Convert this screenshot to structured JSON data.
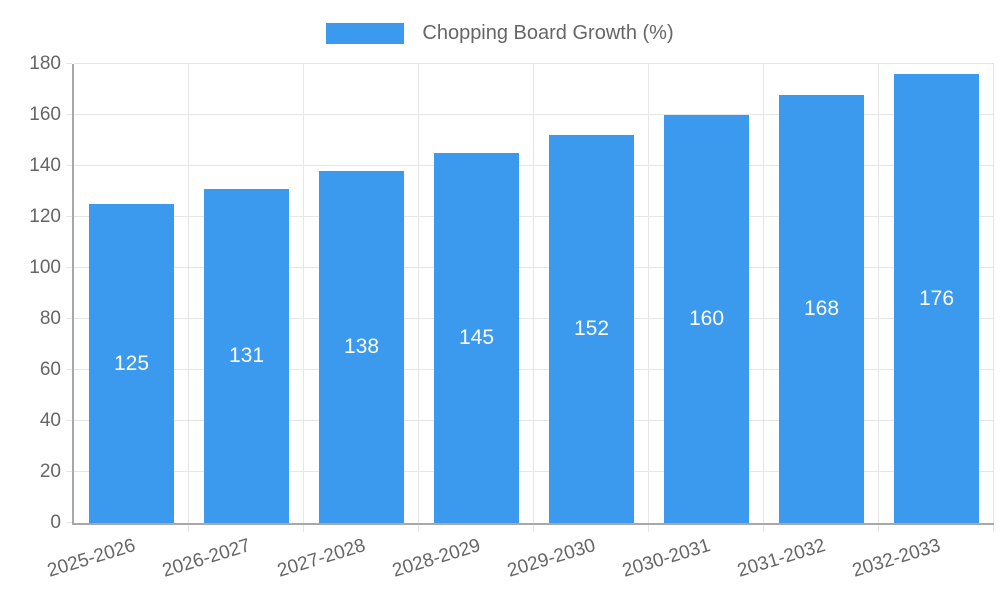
{
  "legend": {
    "label": "Chopping Board Growth (%)"
  },
  "colors": {
    "bar": "#3B99EE",
    "axis_line": "#a8a8a8",
    "grid_line": "#e6e6e6",
    "tick_text": "#666666",
    "legend_text": "#666666",
    "value_label_text": "#ffffff",
    "background": "#ffffff"
  },
  "chart_data": {
    "type": "bar",
    "title": "Chopping Board Growth (%)",
    "categories": [
      "2025-2026",
      "2026-2027",
      "2027-2028",
      "2028-2029",
      "2029-2030",
      "2030-2031",
      "2031-2032",
      "2032-2033"
    ],
    "values": [
      125,
      131,
      138,
      145,
      152,
      160,
      168,
      176
    ],
    "value_labels": [
      "125",
      "131",
      "138",
      "145",
      "152",
      "160",
      "168",
      "176"
    ],
    "ytick_labels": [
      "0",
      "20",
      "40",
      "60",
      "80",
      "100",
      "120",
      "140",
      "160",
      "180"
    ],
    "xlabel": "",
    "ylabel": "",
    "ylim": [
      0,
      180
    ],
    "ytick_step": 20,
    "grid": true,
    "legend_position": "top",
    "value_label_position": "inside-center"
  }
}
